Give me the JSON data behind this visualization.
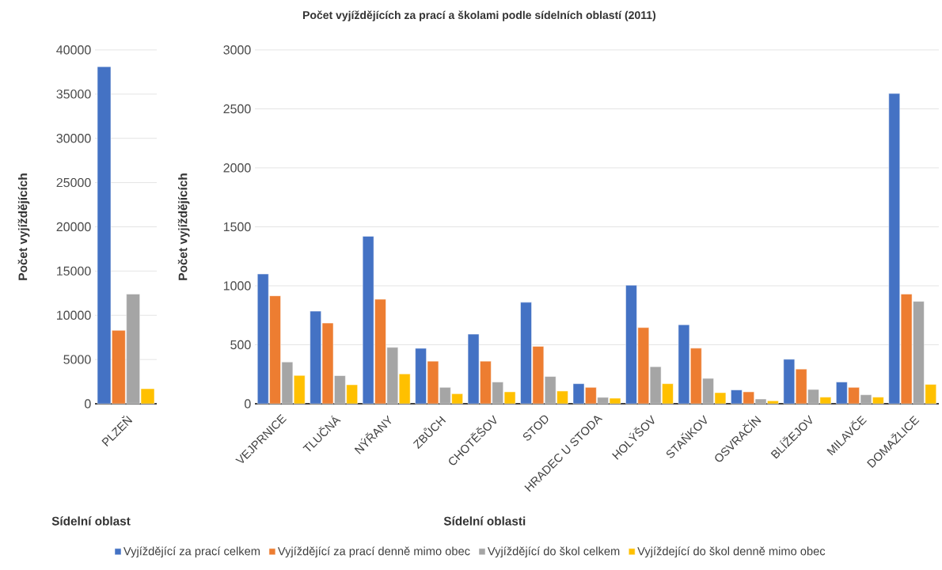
{
  "chart_data": [
    {
      "type": "bar",
      "xlabel": "Sídelní oblast",
      "ylabel": "Počet vyjíždějících",
      "categories": [
        "PLZEŇ"
      ],
      "series": [
        {
          "color": "#4472c4",
          "values": [
            38100
          ]
        },
        {
          "color": "#ed7d31",
          "values": [
            8300
          ]
        },
        {
          "color": "#a5a5a5",
          "values": [
            12400
          ]
        },
        {
          "color": "#ffc000",
          "values": [
            1700
          ]
        }
      ],
      "ylim": [
        0,
        40000
      ],
      "yticks": [
        0,
        5000,
        10000,
        15000,
        20000,
        25000,
        30000,
        35000,
        40000
      ],
      "grid": "y"
    },
    {
      "type": "bar",
      "title": "Počet vyjíždějících za prací a školami podle sídelních oblastí (2011)",
      "xlabel": "Sídelní oblasti",
      "ylabel": "Počet vyjíždějících",
      "categories": [
        "VEJPRNICE",
        "TLUČNÁ",
        "NÝŘANY",
        "ZBŮCH",
        "CHOTĚŠOV",
        "STOD",
        "HRADEC U STODA",
        "HOLÝŠOV",
        "STAŇKOV",
        "OSVRAČÍN",
        "BLÍŽEJOV",
        "MILAVČE",
        "DOMAŽLICE"
      ],
      "series": [
        {
          "name": "Vyjíždějící za prací celkem",
          "color": "#4472c4",
          "values": [
            1100,
            785,
            1420,
            470,
            590,
            860,
            170,
            1005,
            670,
            117,
            377,
            184,
            2630
          ]
        },
        {
          "name": "Vyjíždějící za prací denně mimo obec",
          "color": "#ed7d31",
          "values": [
            915,
            684,
            886,
            361,
            361,
            487,
            139,
            646,
            471,
            101,
            294,
            139,
            930
          ]
        },
        {
          "name": "Vyjíždějící do škol celkem",
          "color": "#a5a5a5",
          "values": [
            354,
            238,
            478,
            139,
            184,
            231,
            54,
            314,
            215,
            40,
            121,
            76,
            868
          ]
        },
        {
          "name": "Vyjíždející do škol denně mimo obec",
          "color": "#ffc000",
          "values": [
            240,
            161,
            253,
            85,
            101,
            108,
            47,
            170,
            94,
            25,
            56,
            56,
            164
          ]
        }
      ],
      "ylim": [
        0,
        3000
      ],
      "yticks": [
        0,
        500,
        1000,
        1500,
        2000,
        2500,
        3000
      ],
      "grid": "y",
      "legend": "bottom"
    }
  ]
}
